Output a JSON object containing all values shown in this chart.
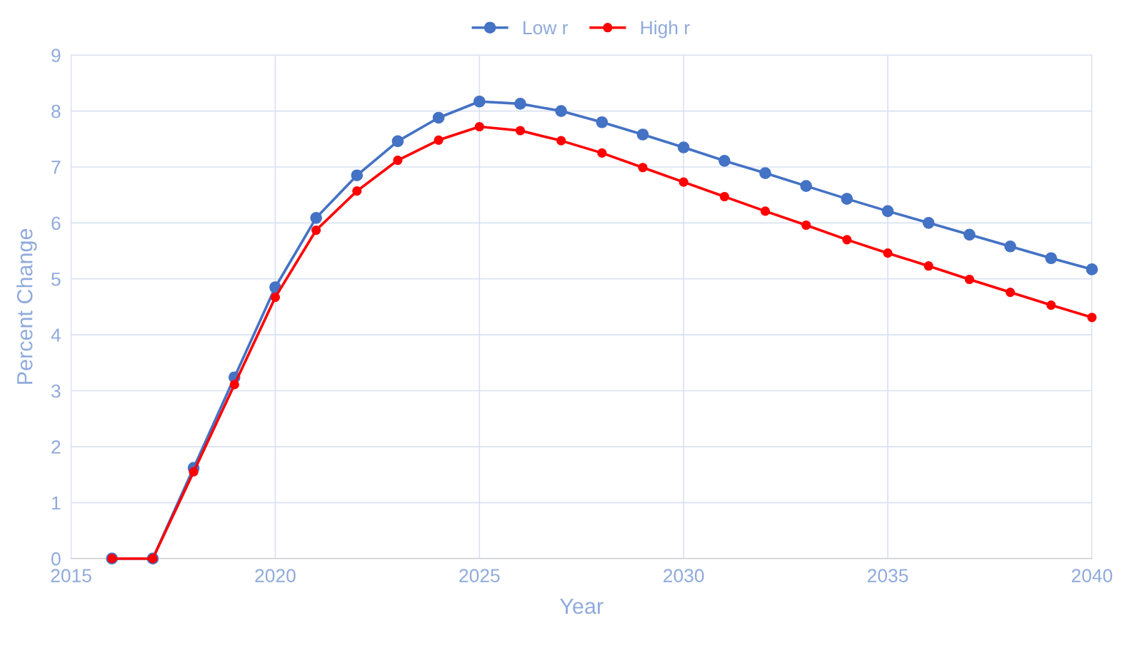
{
  "chart_data": {
    "type": "line",
    "xlabel": "Year",
    "ylabel": "Percent Change",
    "x": [
      2016,
      2017,
      2018,
      2019,
      2020,
      2021,
      2022,
      2023,
      2024,
      2025,
      2026,
      2027,
      2028,
      2029,
      2030,
      2031,
      2032,
      2033,
      2034,
      2035,
      2036,
      2037,
      2038,
      2039,
      2040
    ],
    "series": [
      {
        "name": "Low r",
        "color": "#4472c4",
        "values": [
          0,
          0,
          1.62,
          3.24,
          4.85,
          6.09,
          6.85,
          7.46,
          7.88,
          8.17,
          8.13,
          8.0,
          7.8,
          7.58,
          7.35,
          7.11,
          6.89,
          6.66,
          6.43,
          6.21,
          6.0,
          5.79,
          5.58,
          5.37,
          5.17
        ]
      },
      {
        "name": "High r",
        "color": "#ff0000",
        "values": [
          0,
          0,
          1.55,
          3.11,
          4.67,
          5.87,
          6.57,
          7.12,
          7.48,
          7.72,
          7.65,
          7.47,
          7.25,
          6.99,
          6.73,
          6.47,
          6.21,
          5.96,
          5.7,
          5.46,
          5.23,
          4.99,
          4.76,
          4.53,
          4.31
        ]
      }
    ],
    "xlim": [
      2015,
      2040
    ],
    "xticks": [
      2015,
      2020,
      2025,
      2030,
      2035,
      2040
    ],
    "ylim": [
      0,
      9
    ],
    "yticks": [
      0,
      1,
      2,
      3,
      4,
      5,
      6,
      7,
      8,
      9
    ],
    "grid": true,
    "legend": "top",
    "marker": "circle",
    "line_style": "solid"
  }
}
